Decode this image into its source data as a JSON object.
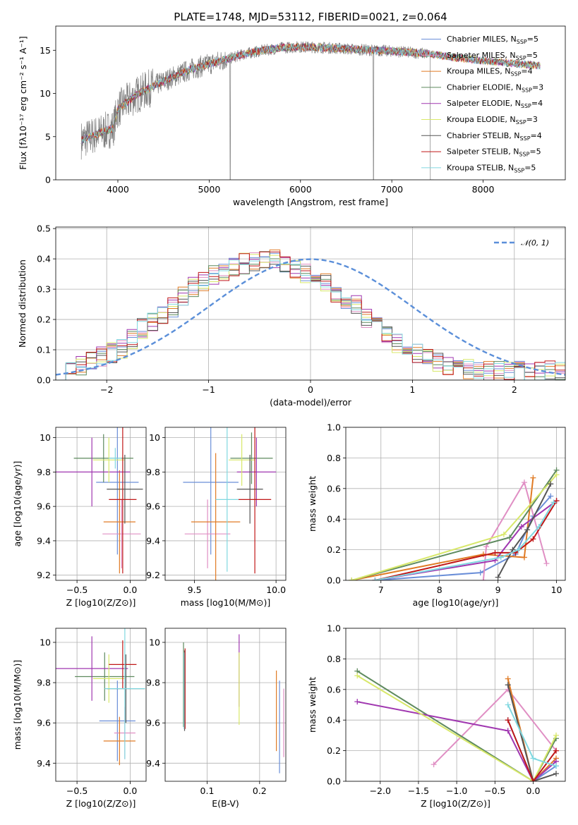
{
  "title": "PLATE=1748, MJD=53112, FIBERID=0021, z=0.064",
  "colors": {
    "chabrier_miles": "#6a8ed8",
    "salpeter_miles": "#e08fc4",
    "kroupa_miles": "#e07b25",
    "chabrier_elodie": "#5e8a5e",
    "salpeter_elodie": "#a037b0",
    "kroupa_elodie": "#d8e86a",
    "chabrier_stelib": "#555555",
    "salpeter_stelib": "#c01818",
    "kroupa_stelib": "#80d8e0",
    "data": "#808080",
    "normal": "#5b8fd9"
  },
  "chart_data": [
    {
      "id": "spectrum",
      "type": "line",
      "title": "PLATE=1748, MJD=53112, FIBERID=0021, z=0.064",
      "xlabel": "wavelength [Angstrom, rest frame]",
      "ylabel": "Flux [fλ10⁻¹⁷ erg cm⁻² s⁻¹ A⁻¹]",
      "xlim": [
        3320,
        8900
      ],
      "ylim": [
        0,
        17.8
      ],
      "xticks": [
        4000,
        5000,
        6000,
        7000,
        8000
      ],
      "yticks": [
        0,
        5,
        10,
        15
      ],
      "legend_position": "right",
      "legend": [
        {
          "label": "Chabrier MILES, N",
          "sub": "SSP",
          "eq": "=5",
          "key": "chabrier_miles"
        },
        {
          "label": "Salpeter MILES, N",
          "sub": "SSP",
          "eq": "=5",
          "key": "salpeter_miles"
        },
        {
          "label": "Kroupa MILES, N",
          "sub": "SSP",
          "eq": "=4",
          "key": "kroupa_miles"
        },
        {
          "label": "Chabrier ELODIE, N",
          "sub": "SSP",
          "eq": "=3",
          "key": "chabrier_elodie"
        },
        {
          "label": "Salpeter ELODIE, N",
          "sub": "SSP",
          "eq": "=4",
          "key": "salpeter_elodie"
        },
        {
          "label": "Kroupa ELODIE, N",
          "sub": "SSP",
          "eq": "=3",
          "key": "kroupa_elodie"
        },
        {
          "label": "Chabrier STELIB, N",
          "sub": "SSP",
          "eq": "=4",
          "key": "chabrier_stelib"
        },
        {
          "label": "Salpeter STELIB, N",
          "sub": "SSP",
          "eq": "=5",
          "key": "salpeter_stelib"
        },
        {
          "label": "Kroupa STELIB, N",
          "sub": "SSP",
          "eq": "=5",
          "key": "kroupa_stelib"
        }
      ],
      "continuum": [
        [
          3600,
          4.6
        ],
        [
          3800,
          5.4
        ],
        [
          3950,
          6.0
        ],
        [
          4000,
          8.2
        ],
        [
          4200,
          9.8
        ],
        [
          4400,
          10.9
        ],
        [
          4600,
          11.9
        ],
        [
          4800,
          12.8
        ],
        [
          5000,
          13.4
        ],
        [
          5200,
          14.0
        ],
        [
          5400,
          14.6
        ],
        [
          5600,
          15.0
        ],
        [
          5800,
          15.3
        ],
        [
          6000,
          15.4
        ],
        [
          6300,
          15.3
        ],
        [
          6600,
          15.1
        ],
        [
          7000,
          14.9
        ],
        [
          7400,
          14.6
        ],
        [
          7800,
          14.0
        ],
        [
          8200,
          13.6
        ],
        [
          8630,
          13.2
        ]
      ]
    },
    {
      "id": "residuals",
      "type": "bar",
      "xlabel": "(data-model)/error",
      "ylabel": "Normed distribution",
      "xlim": [
        -2.5,
        2.5
      ],
      "ylim": [
        0,
        0.505
      ],
      "xticks": [
        -2,
        -1,
        0,
        1,
        2
      ],
      "yticks": [
        0.0,
        0.1,
        0.2,
        0.3,
        0.4,
        0.5
      ],
      "legend_position": "top-right",
      "legend_label": "𝒩(0, 1)",
      "bin_edges_from": -2.5,
      "bin_width": 0.1,
      "histogram_base": [
        0.03,
        0.03,
        0.035,
        0.04,
        0.05,
        0.06,
        0.07,
        0.08,
        0.085,
        0.09,
        0.1,
        0.12,
        0.135,
        0.15,
        0.17,
        0.19,
        0.205,
        0.22,
        0.24,
        0.26,
        0.275,
        0.29,
        0.31,
        0.325,
        0.335,
        0.345,
        0.355,
        0.365,
        0.37,
        0.38,
        0.385,
        0.39,
        0.39,
        0.395,
        0.395,
        0.39,
        0.385,
        0.375,
        0.365,
        0.355,
        0.345,
        0.335,
        0.32,
        0.305,
        0.29,
        0.275,
        0.26,
        0.245,
        0.225,
        0.205,
        0.19,
        0.17,
        0.15,
        0.135,
        0.12,
        0.105,
        0.095,
        0.085,
        0.075,
        0.065,
        0.055,
        0.05,
        0.045,
        0.04,
        0.035,
        0.033,
        0.03,
        0.03,
        0.03,
        0.03,
        0.03,
        0.03,
        0.03,
        0.03,
        0.03,
        0.03,
        0.03,
        0.03,
        0.03,
        0.03
      ],
      "series_count": 9
    },
    {
      "id": "age_vs_Z",
      "type": "scatter",
      "xlabel": "Z [log10(Z/Z⊙)]",
      "ylabel": "age  [log10(age/yr)]",
      "xlim": [
        -0.7,
        0.15
      ],
      "ylim": [
        9.17,
        10.06
      ],
      "xticks": [
        -0.5,
        0.0
      ],
      "yticks": [
        9.2,
        9.4,
        9.6,
        9.8,
        10.0
      ],
      "points": [
        {
          "key": "chabrier_miles",
          "x": -0.12,
          "y": 9.74,
          "xerr": 0.2,
          "yerr": 0.42
        },
        {
          "key": "salpeter_miles",
          "x": -0.08,
          "y": 9.44,
          "xerr": 0.18,
          "yerr": 0.2
        },
        {
          "key": "kroupa_miles",
          "x": -0.1,
          "y": 9.51,
          "xerr": 0.15,
          "yerr": 0.3
        },
        {
          "key": "chabrier_elodie",
          "x": -0.25,
          "y": 9.88,
          "xerr": 0.28,
          "yerr": 0.14
        },
        {
          "key": "salpeter_elodie",
          "x": -0.36,
          "y": 9.8,
          "xerr": 0.36,
          "yerr": 0.2
        },
        {
          "key": "kroupa_elodie",
          "x": -0.2,
          "y": 9.87,
          "xerr": 0.15,
          "yerr": 0.13
        },
        {
          "key": "chabrier_stelib",
          "x": -0.05,
          "y": 9.7,
          "xerr": 0.17,
          "yerr": 0.2
        },
        {
          "key": "salpeter_stelib",
          "x": -0.07,
          "y": 9.64,
          "xerr": 0.13,
          "yerr": 0.43
        },
        {
          "key": "kroupa_stelib",
          "x": -0.14,
          "y": 9.88,
          "xerr": 0.06,
          "yerr": 0.06
        }
      ]
    },
    {
      "id": "age_vs_mass",
      "type": "scatter",
      "xlabel": "mass [log10(M/M⊙)]",
      "ylabel": "",
      "xlim": [
        9.32,
        10.06
      ],
      "ylim": [
        9.17,
        10.06
      ],
      "xticks": [
        9.5,
        10.0
      ],
      "yticks": [
        9.2,
        9.4,
        9.6,
        9.8,
        10.0
      ],
      "points": [
        {
          "key": "chabrier_miles",
          "x": 9.6,
          "y": 9.74,
          "xerr": 0.17,
          "yerr": 0.42
        },
        {
          "key": "salpeter_miles",
          "x": 9.58,
          "y": 9.44,
          "xerr": 0.14,
          "yerr": 0.2
        },
        {
          "key": "kroupa_miles",
          "x": 9.63,
          "y": 9.51,
          "xerr": 0.15,
          "yerr": 0.4
        },
        {
          "key": "chabrier_elodie",
          "x": 9.85,
          "y": 9.88,
          "xerr": 0.13,
          "yerr": 0.15
        },
        {
          "key": "salpeter_elodie",
          "x": 9.88,
          "y": 9.8,
          "xerr": 0.12,
          "yerr": 0.2
        },
        {
          "key": "kroupa_elodie",
          "x": 9.79,
          "y": 9.87,
          "xerr": 0.08,
          "yerr": 0.15
        },
        {
          "key": "chabrier_stelib",
          "x": 9.84,
          "y": 9.7,
          "xerr": 0.08,
          "yerr": 0.2
        },
        {
          "key": "salpeter_stelib",
          "x": 9.87,
          "y": 9.64,
          "xerr": 0.1,
          "yerr": 0.43
        },
        {
          "key": "kroupa_stelib",
          "x": 9.7,
          "y": 9.64,
          "xerr": 0.07,
          "yerr": 0.42
        }
      ]
    },
    {
      "id": "weight_vs_age",
      "type": "line",
      "xlabel": "age  [log10(age/yr)]",
      "ylabel": "mass weight",
      "xlim": [
        6.4,
        10.15
      ],
      "ylim": [
        0,
        1.0
      ],
      "xticks": [
        7,
        8,
        9,
        10
      ],
      "yticks": [
        0.0,
        0.2,
        0.4,
        0.6,
        0.8,
        1.0
      ],
      "series": [
        {
          "key": "chabrier_miles",
          "points": [
            [
              6.9,
              0.0
            ],
            [
              8.7,
              0.05
            ],
            [
              9.3,
              0.17
            ],
            [
              9.6,
              0.42
            ],
            [
              9.9,
              0.55
            ]
          ]
        },
        {
          "key": "salpeter_miles",
          "points": [
            [
              8.75,
              0.0
            ],
            [
              8.8,
              0.22
            ],
            [
              9.45,
              0.64
            ],
            [
              9.83,
              0.11
            ]
          ]
        },
        {
          "key": "kroupa_miles",
          "points": [
            [
              6.5,
              0.0
            ],
            [
              8.75,
              0.17
            ],
            [
              9.45,
              0.15
            ],
            [
              9.6,
              0.67
            ]
          ]
        },
        {
          "key": "chabrier_elodie",
          "points": [
            [
              6.5,
              0.0
            ],
            [
              9.2,
              0.28
            ],
            [
              10.0,
              0.72
            ]
          ]
        },
        {
          "key": "salpeter_elodie",
          "points": [
            [
              6.9,
              0.0
            ],
            [
              8.95,
              0.13
            ],
            [
              9.4,
              0.35
            ],
            [
              10.0,
              0.52
            ]
          ]
        },
        {
          "key": "kroupa_elodie",
          "points": [
            [
              6.5,
              0.0
            ],
            [
              9.1,
              0.3
            ],
            [
              10.0,
              0.69
            ]
          ]
        },
        {
          "key": "chabrier_stelib",
          "points": [
            [
              9.0,
              0.02
            ],
            [
              9.25,
              0.2
            ],
            [
              9.5,
              0.33
            ],
            [
              9.9,
              0.63
            ]
          ]
        },
        {
          "key": "salpeter_stelib",
          "points": [
            [
              6.9,
              0.0
            ],
            [
              8.95,
              0.18
            ],
            [
              9.3,
              0.18
            ],
            [
              9.6,
              0.27
            ],
            [
              10.0,
              0.52
            ]
          ]
        },
        {
          "key": "kroupa_stelib",
          "points": [
            [
              6.9,
              0.0
            ],
            [
              9.05,
              0.15
            ],
            [
              9.35,
              0.2
            ],
            [
              9.7,
              0.35
            ],
            [
              9.95,
              0.51
            ]
          ]
        }
      ]
    },
    {
      "id": "mass_vs_Z",
      "type": "scatter",
      "xlabel": "Z [log10(Z/Z⊙)]",
      "ylabel": "mass [log10(M/M⊙)]",
      "xlim": [
        -0.7,
        0.15
      ],
      "ylim": [
        9.31,
        10.07
      ],
      "xticks": [
        -0.5,
        0.0
      ],
      "yticks": [
        9.4,
        9.6,
        9.8,
        10.0
      ],
      "points": [
        {
          "key": "chabrier_miles",
          "x": -0.12,
          "y": 9.61,
          "xerr": 0.17,
          "yerr": 0.2
        },
        {
          "key": "salpeter_miles",
          "x": -0.05,
          "y": 9.55,
          "xerr": 0.1,
          "yerr": 0.13
        },
        {
          "key": "kroupa_miles",
          "x": -0.1,
          "y": 9.51,
          "xerr": 0.15,
          "yerr": 0.12
        },
        {
          "key": "chabrier_elodie",
          "x": -0.24,
          "y": 9.83,
          "xerr": 0.28,
          "yerr": 0.12
        },
        {
          "key": "salpeter_elodie",
          "x": -0.36,
          "y": 9.87,
          "xerr": 0.34,
          "yerr": 0.16
        },
        {
          "key": "kroupa_elodie",
          "x": -0.2,
          "y": 9.82,
          "xerr": 0.15,
          "yerr": 0.12
        },
        {
          "key": "chabrier_stelib",
          "x": -0.04,
          "y": 9.77,
          "xerr": 0.18,
          "yerr": 0.17
        },
        {
          "key": "salpeter_stelib",
          "x": -0.07,
          "y": 9.89,
          "xerr": 0.13,
          "yerr": 0.12
        },
        {
          "key": "kroupa_stelib",
          "x": -0.05,
          "y": 9.77,
          "xerr": 0.19,
          "yerr": 0.35
        }
      ]
    },
    {
      "id": "mass_vs_ebv",
      "type": "scatter",
      "xlabel": "E(B-V)",
      "ylabel": "",
      "xlim": [
        0.02,
        0.25
      ],
      "ylim": [
        9.31,
        10.07
      ],
      "xticks": [
        0.1,
        0.2
      ],
      "yticks": [
        9.4,
        9.6,
        9.8,
        10.0
      ],
      "points": [
        {
          "key": "chabrier_miles",
          "x": 0.238,
          "y": 9.58,
          "yerr": 0.23
        },
        {
          "key": "salpeter_miles",
          "x": 0.246,
          "y": 9.6,
          "yerr": 0.17
        },
        {
          "key": "kroupa_miles",
          "x": 0.232,
          "y": 9.66,
          "yerr": 0.2
        },
        {
          "key": "chabrier_elodie",
          "x": 0.055,
          "y": 9.79,
          "yerr": 0.21
        },
        {
          "key": "salpeter_elodie",
          "x": 0.161,
          "y": 9.86,
          "yerr": 0.18
        },
        {
          "key": "kroupa_elodie",
          "x": 0.161,
          "y": 9.77,
          "yerr": 0.18
        },
        {
          "key": "chabrier_stelib",
          "x": 0.057,
          "y": 9.76,
          "yerr": 0.2
        },
        {
          "key": "salpeter_stelib",
          "x": 0.058,
          "y": 9.77,
          "yerr": 0.2
        },
        {
          "key": "kroupa_stelib",
          "x": 0.056,
          "y": 9.76,
          "yerr": 0.19
        }
      ]
    },
    {
      "id": "weight_vs_Z",
      "type": "line",
      "xlabel": "Z [log10(Z/Z⊙)]",
      "ylabel": "mass weight",
      "xlim": [
        -2.45,
        0.42
      ],
      "ylim": [
        0,
        1.0
      ],
      "xticks": [
        -2.0,
        -1.5,
        -1.0,
        -0.5,
        0.0
      ],
      "yticks": [
        0.0,
        0.2,
        0.4,
        0.6,
        0.8,
        1.0
      ],
      "series": [
        {
          "key": "chabrier_miles",
          "points": [
            [
              -0.33,
              0.4
            ],
            [
              0.0,
              0.0
            ],
            [
              0.3,
              0.1
            ]
          ]
        },
        {
          "key": "salpeter_miles",
          "points": [
            [
              -1.3,
              0.11
            ],
            [
              -0.33,
              0.6
            ],
            [
              0.3,
              0.2
            ]
          ]
        },
        {
          "key": "kroupa_miles",
          "points": [
            [
              -0.33,
              0.67
            ],
            [
              0.0,
              0.0
            ],
            [
              0.3,
              0.15
            ]
          ]
        },
        {
          "key": "chabrier_elodie",
          "points": [
            [
              -2.3,
              0.72
            ],
            [
              0.0,
              0.0
            ],
            [
              0.3,
              0.28
            ]
          ]
        },
        {
          "key": "salpeter_elodie",
          "points": [
            [
              -2.3,
              0.52
            ],
            [
              -0.33,
              0.33
            ],
            [
              0.0,
              0.0
            ],
            [
              0.3,
              0.13
            ]
          ]
        },
        {
          "key": "kroupa_elodie",
          "points": [
            [
              -2.3,
              0.69
            ],
            [
              0.0,
              0.0
            ],
            [
              0.3,
              0.3
            ]
          ]
        },
        {
          "key": "chabrier_stelib",
          "points": [
            [
              -0.33,
              0.63
            ],
            [
              0.0,
              0.0
            ],
            [
              0.3,
              0.05
            ]
          ]
        },
        {
          "key": "salpeter_stelib",
          "points": [
            [
              -0.33,
              0.4
            ],
            [
              0.0,
              0.0
            ],
            [
              0.3,
              0.2
            ]
          ]
        },
        {
          "key": "kroupa_stelib",
          "points": [
            [
              -0.33,
              0.5
            ],
            [
              0.0,
              0.15
            ],
            [
              0.3,
              0.1
            ]
          ]
        }
      ]
    }
  ]
}
